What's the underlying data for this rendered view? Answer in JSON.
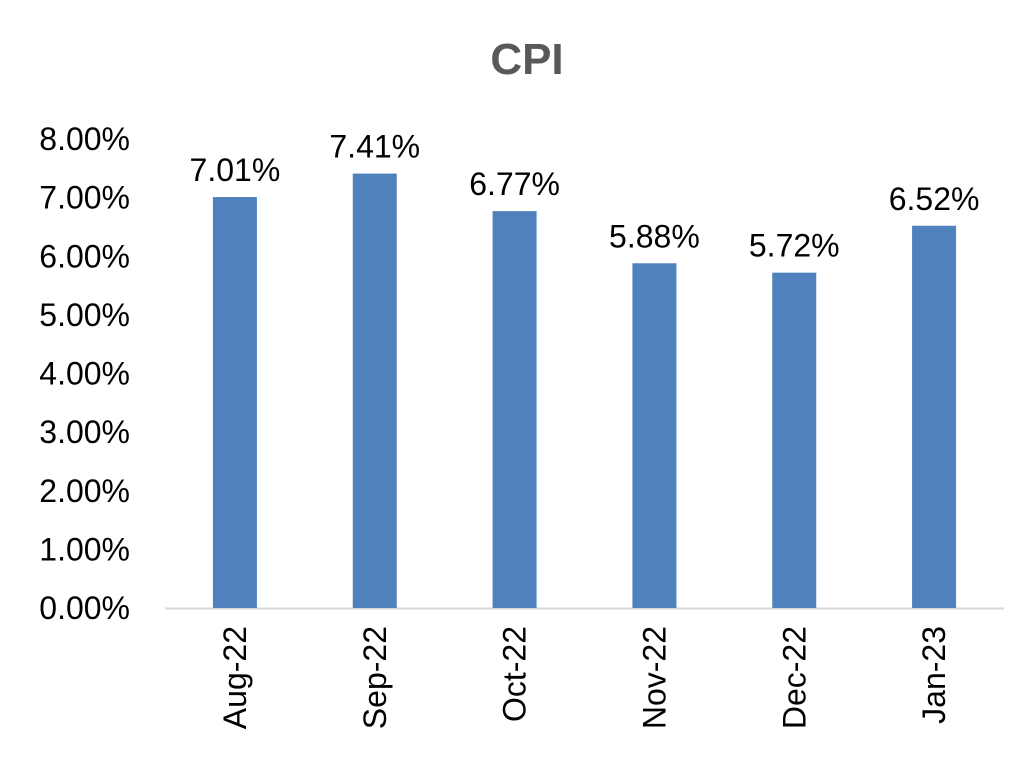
{
  "chart_data": {
    "type": "bar",
    "title": "CPI",
    "xlabel": "",
    "ylabel": "",
    "categories": [
      "Aug-22",
      "Sep-22",
      "Oct-22",
      "Nov-22",
      "Dec-22",
      "Jan-23"
    ],
    "values": [
      7.01,
      7.41,
      6.77,
      5.88,
      5.72,
      6.52
    ],
    "data_labels": [
      "7.01%",
      "7.41%",
      "6.77%",
      "5.88%",
      "5.72%",
      "6.52%"
    ],
    "y_ticks": [
      0,
      1,
      2,
      3,
      4,
      5,
      6,
      7,
      8
    ],
    "y_tick_labels": [
      "0.00%",
      "1.00%",
      "2.00%",
      "3.00%",
      "4.00%",
      "5.00%",
      "6.00%",
      "7.00%",
      "8.00%"
    ],
    "ylim": [
      0,
      8
    ],
    "grid": false,
    "legend": "none",
    "colors": {
      "bar": "#4f81bd",
      "axis": "#d9d9d9",
      "title": "#595959"
    }
  }
}
